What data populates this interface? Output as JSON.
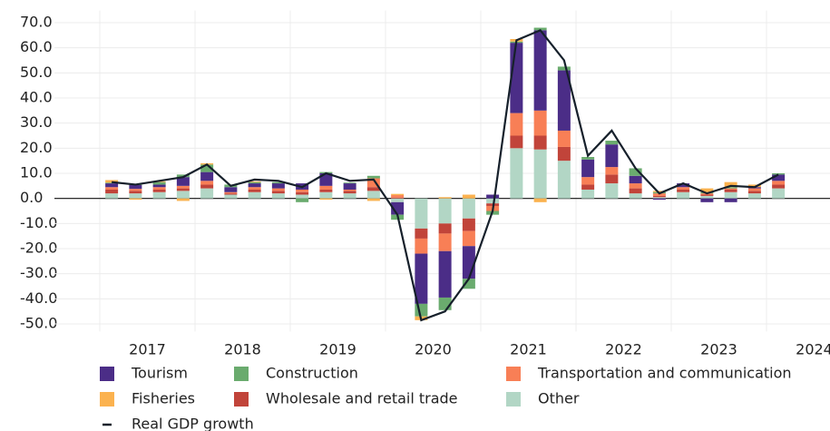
{
  "chart_data": {
    "type": "stacked-bar-line",
    "categories": [
      "2017",
      null,
      null,
      null,
      "2018",
      null,
      null,
      null,
      "2019",
      null,
      null,
      null,
      "2020",
      null,
      null,
      null,
      "2021",
      null,
      null,
      null,
      "2022",
      null,
      null,
      null,
      "2023",
      null,
      null,
      null,
      "2024"
    ],
    "series": [
      {
        "name": "Tourism",
        "color": "#4b2d87",
        "values": [
          1.5,
          1.5,
          1,
          3.5,
          3.5,
          2,
          1.5,
          2,
          2.5,
          5,
          2.5,
          0,
          -5,
          -20,
          -18.5,
          -13,
          1.5,
          28,
          32,
          24,
          7,
          9,
          3,
          -0.5,
          1.5,
          -1.5,
          -1.5,
          0.5,
          2.5
        ]
      },
      {
        "name": "Construction",
        "color": "#6aab6e",
        "values": [
          0.3,
          0.5,
          1,
          1,
          3,
          1,
          0.5,
          0.5,
          -1.5,
          0.5,
          0.3,
          1,
          -2,
          -5,
          -5,
          -4,
          -1.5,
          0.5,
          1,
          1.5,
          1,
          1.5,
          3,
          0.5,
          0,
          0.5,
          0.5,
          0,
          0.5
        ]
      },
      {
        "name": "Transportation and communication",
        "color": "#f87f56",
        "values": [
          1,
          0.8,
          1,
          1,
          1.5,
          0.5,
          1,
          1,
          1,
          1.5,
          0.5,
          3.5,
          1,
          -6,
          -7,
          -6,
          -2,
          9,
          10,
          6.5,
          3,
          3,
          2,
          1,
          1,
          0.5,
          0.5,
          1,
          1.5
        ]
      },
      {
        "name": "Fisheries",
        "color": "#fbb24f",
        "values": [
          1,
          -0.5,
          0.3,
          -1,
          0.5,
          0,
          0.3,
          0,
          0,
          -0.5,
          0,
          -1,
          0.5,
          -1.5,
          0.5,
          1.5,
          0,
          1,
          -1.5,
          0,
          0,
          0,
          0,
          0.5,
          0,
          1.5,
          2,
          1,
          0
        ]
      },
      {
        "name": "Wholesale and retail trade",
        "color": "#c1443a",
        "values": [
          1.5,
          1,
          1,
          1,
          1.5,
          0.5,
          1,
          1,
          1,
          1,
          1,
          1.5,
          0.3,
          -4,
          -4,
          -5,
          -1,
          5,
          5.5,
          5.5,
          2,
          3.5,
          2,
          0.5,
          1,
          0.5,
          1,
          1,
          1.5
        ]
      },
      {
        "name": "Other",
        "color": "#b2d6c5",
        "values": [
          2,
          2,
          2.5,
          3,
          4,
          1.5,
          2.5,
          2,
          1.5,
          2.5,
          2,
          3,
          -1.5,
          -12,
          -10,
          -8,
          -2,
          20,
          19.5,
          15,
          3.5,
          6,
          2,
          0.5,
          2.5,
          1,
          2.5,
          2,
          4
        ]
      },
      {
        "name": "Real GDP growth",
        "color": "#16202b",
        "kind": "line",
        "values": [
          6.5,
          5.5,
          7,
          8.5,
          13.5,
          5,
          7.5,
          7,
          4.5,
          10,
          7,
          7.5,
          -6.5,
          -48.5,
          -45,
          -32,
          -5,
          63,
          67,
          55,
          17,
          27,
          12,
          2,
          6,
          2,
          5,
          4.5,
          9.5
        ]
      }
    ],
    "ylim": [
      -53,
      73
    ],
    "yticks": [
      {
        "value": -50,
        "label": "-50.0"
      },
      {
        "value": -40,
        "label": "-40.0"
      },
      {
        "value": -30,
        "label": "-30.0"
      },
      {
        "value": -20,
        "label": "-20.0"
      },
      {
        "value": -10,
        "label": "-10.0"
      },
      {
        "value": 0,
        "label": "0.0"
      },
      {
        "value": 10,
        "label": "10.0"
      },
      {
        "value": 20,
        "label": "20.0"
      },
      {
        "value": 30,
        "label": "30.0"
      },
      {
        "value": 40,
        "label": "40.0"
      },
      {
        "value": 50,
        "label": "50.0"
      },
      {
        "value": 60,
        "label": "60.0"
      },
      {
        "value": 70,
        "label": "70.0"
      }
    ],
    "grid": true
  }
}
